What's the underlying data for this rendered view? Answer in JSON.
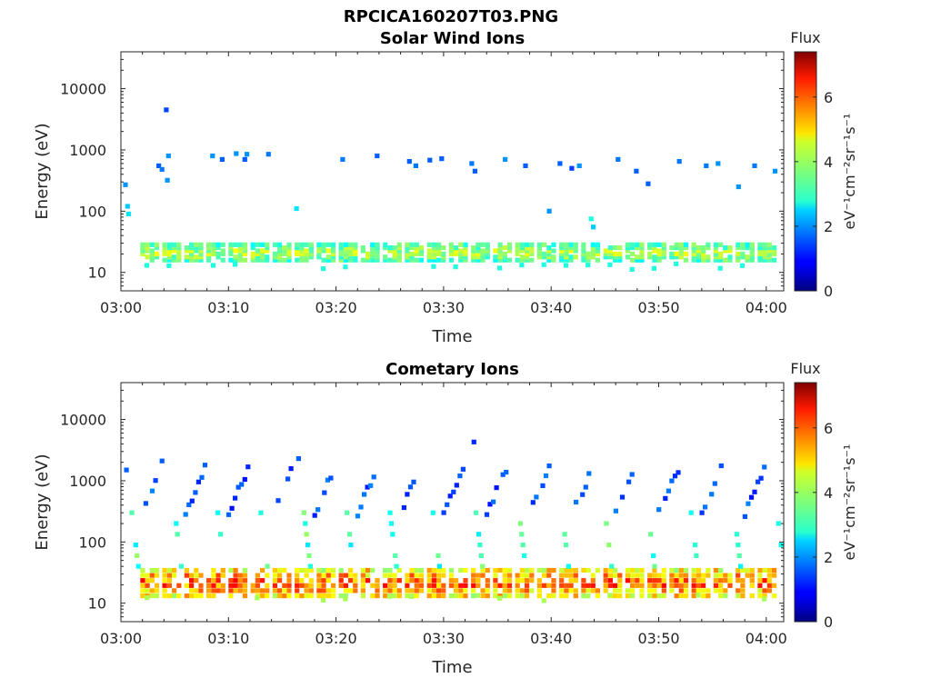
{
  "figure": {
    "title": "RPCICA160207T03.PNG"
  },
  "chart_data": [
    {
      "type": "heatmap",
      "title": "Solar Wind Ions",
      "xlabel": "Time",
      "ylabel": "Energy (eV)",
      "yscale": "log",
      "ylim": [
        5,
        40000
      ],
      "xlim": [
        "03:00",
        "04:02"
      ],
      "x_ticks": [
        "03:00",
        "03:10",
        "03:20",
        "03:30",
        "03:40",
        "03:50",
        "04:00"
      ],
      "y_ticks": [
        "10",
        "100",
        "1000",
        "10000"
      ],
      "colorbar": {
        "label": "Flux",
        "units": "eV⁻¹cm⁻²sr⁻¹s⁻¹",
        "range": [
          0,
          7.4
        ],
        "ticks": [
          "0",
          "2",
          "4",
          "6"
        ],
        "colormap": "jet"
      },
      "features": {
        "low_energy_bursts": {
          "period_min": 2.05,
          "energy_range_eV": [
            15,
            30
          ],
          "flux_range": [
            2.5,
            4.8
          ]
        },
        "sparse_points": [
          {
            "t": 0.2,
            "e": 270,
            "f": 2.0
          },
          {
            "t": 0.4,
            "e": 120,
            "f": 2.4
          },
          {
            "t": 0.5,
            "e": 90,
            "f": 2.6
          },
          {
            "t": 3.3,
            "e": 550,
            "f": 1.6
          },
          {
            "t": 3.6,
            "e": 480,
            "f": 1.8
          },
          {
            "t": 4.0,
            "e": 4500,
            "f": 1.4
          },
          {
            "t": 4.1,
            "e": 320,
            "f": 2.0
          },
          {
            "t": 4.2,
            "e": 800,
            "f": 2.0
          },
          {
            "t": 8.3,
            "e": 800,
            "f": 2.0
          },
          {
            "t": 9.2,
            "e": 700,
            "f": 1.6
          },
          {
            "t": 10.5,
            "e": 870,
            "f": 2.0
          },
          {
            "t": 11.3,
            "e": 700,
            "f": 1.6
          },
          {
            "t": 11.5,
            "e": 850,
            "f": 2.0
          },
          {
            "t": 13.5,
            "e": 850,
            "f": 1.8
          },
          {
            "t": 16.1,
            "e": 110,
            "f": 2.6
          },
          {
            "t": 20.4,
            "e": 700,
            "f": 1.8
          },
          {
            "t": 23.6,
            "e": 800,
            "f": 1.6
          },
          {
            "t": 26.6,
            "e": 650,
            "f": 1.6
          },
          {
            "t": 27.2,
            "e": 550,
            "f": 1.8
          },
          {
            "t": 28.5,
            "e": 680,
            "f": 1.6
          },
          {
            "t": 29.6,
            "e": 720,
            "f": 1.6
          },
          {
            "t": 32.4,
            "e": 600,
            "f": 1.8
          },
          {
            "t": 32.7,
            "e": 450,
            "f": 1.6
          },
          {
            "t": 35.5,
            "e": 700,
            "f": 2.0
          },
          {
            "t": 37.4,
            "e": 550,
            "f": 1.6
          },
          {
            "t": 39.6,
            "e": 100,
            "f": 2.0
          },
          {
            "t": 40.6,
            "e": 600,
            "f": 1.6
          },
          {
            "t": 41.7,
            "e": 500,
            "f": 1.4
          },
          {
            "t": 42.4,
            "e": 550,
            "f": 2.0
          },
          {
            "t": 43.5,
            "e": 75,
            "f": 3.0
          },
          {
            "t": 43.7,
            "e": 55,
            "f": 2.4
          },
          {
            "t": 46.0,
            "e": 700,
            "f": 1.8
          },
          {
            "t": 47.7,
            "e": 450,
            "f": 1.6
          },
          {
            "t": 48.8,
            "e": 280,
            "f": 1.6
          },
          {
            "t": 51.7,
            "e": 650,
            "f": 1.8
          },
          {
            "t": 54.2,
            "e": 550,
            "f": 1.8
          },
          {
            "t": 55.3,
            "e": 600,
            "f": 2.0
          },
          {
            "t": 57.2,
            "e": 250,
            "f": 2.0
          },
          {
            "t": 58.7,
            "e": 550,
            "f": 1.8
          },
          {
            "t": 60.6,
            "e": 450,
            "f": 2.0
          }
        ]
      }
    },
    {
      "type": "heatmap",
      "title": "Cometary Ions",
      "xlabel": "Time",
      "ylabel": "Energy (eV)",
      "yscale": "log",
      "ylim": [
        5,
        40000
      ],
      "xlim": [
        "03:00",
        "04:02"
      ],
      "x_ticks": [
        "03:00",
        "03:10",
        "03:20",
        "03:30",
        "03:40",
        "03:50",
        "04:00"
      ],
      "y_ticks": [
        "10",
        "100",
        "1000",
        "10000"
      ],
      "colorbar": {
        "label": "Flux",
        "units": "eV⁻¹cm⁻²sr⁻¹s⁻¹",
        "range": [
          0,
          7.4
        ],
        "ticks": [
          "0",
          "2",
          "4",
          "6"
        ],
        "colormap": "jet"
      },
      "features": {
        "low_energy_bursts": {
          "period_min": 2.05,
          "energy_range_eV": [
            12,
            38
          ],
          "flux_range": [
            3.5,
            6.8
          ]
        },
        "sweep_period_min": 4.0,
        "sweep_energy_range_eV": [
          300,
          1600
        ],
        "sparse_points": [
          {
            "t": 0.3,
            "e": 1500,
            "f": 1.6
          },
          {
            "t": 3.6,
            "e": 2100,
            "f": 1.6
          },
          {
            "t": 16.3,
            "e": 2300,
            "f": 1.6
          },
          {
            "t": 32.6,
            "e": 4300,
            "f": 1.2
          }
        ]
      }
    }
  ]
}
